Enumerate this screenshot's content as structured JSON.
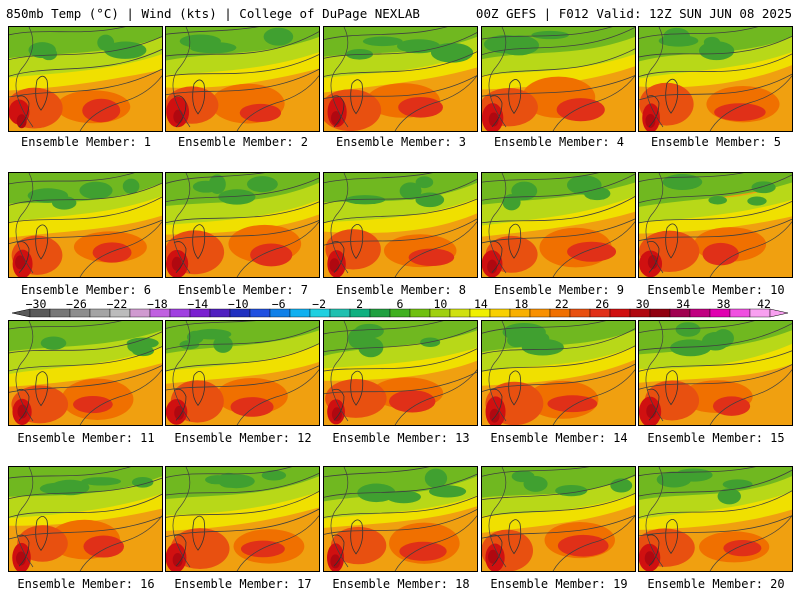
{
  "header": {
    "left": "850mb Temp (°C) | Wind (kts) | College of DuPage NEXLAB",
    "right": "00Z GEFS | F012 Valid: 12Z SUN JUN 08 2025"
  },
  "panels": [
    {
      "label": "Ensemble Member: 1"
    },
    {
      "label": "Ensemble Member: 2"
    },
    {
      "label": "Ensemble Member: 3"
    },
    {
      "label": "Ensemble Member: 4"
    },
    {
      "label": "Ensemble Member: 5"
    },
    {
      "label": "Ensemble Member: 6"
    },
    {
      "label": "Ensemble Member: 7"
    },
    {
      "label": "Ensemble Member: 8"
    },
    {
      "label": "Ensemble Member: 9"
    },
    {
      "label": "Ensemble Member: 10"
    },
    {
      "label": "Ensemble Member: 11"
    },
    {
      "label": "Ensemble Member: 12"
    },
    {
      "label": "Ensemble Member: 13"
    },
    {
      "label": "Ensemble Member: 14"
    },
    {
      "label": "Ensemble Member: 15"
    },
    {
      "label": "Ensemble Member: 16"
    },
    {
      "label": "Ensemble Member: 17"
    },
    {
      "label": "Ensemble Member: 18"
    },
    {
      "label": "Ensemble Member: 19"
    },
    {
      "label": "Ensemble Member: 20"
    }
  ],
  "colorbar": {
    "labels": [
      "−30",
      "−26",
      "−22",
      "−18",
      "−14",
      "−10",
      "−6",
      "−2",
      "2",
      "6",
      "10",
      "14",
      "18",
      "22",
      "26",
      "30",
      "34",
      "38",
      "42"
    ],
    "colors": [
      "#5a5a5a",
      "#787878",
      "#8e8e8e",
      "#a4a4a4",
      "#bcbcbc",
      "#d09ad0",
      "#c060e0",
      "#a040e0",
      "#7a20d0",
      "#5020c0",
      "#2030c0",
      "#2050e0",
      "#1080e8",
      "#10b0f0",
      "#20d0e0",
      "#20c0b0",
      "#10b080",
      "#20a040",
      "#40b020",
      "#70c010",
      "#a0d010",
      "#d0e010",
      "#f0f000",
      "#f8d000",
      "#f8b000",
      "#f89000",
      "#f07000",
      "#e85010",
      "#e03018",
      "#d01010",
      "#b00810",
      "#900010",
      "#a00050",
      "#c00080",
      "#e000b0",
      "#f050e0",
      "#f8a0f0"
    ]
  }
}
